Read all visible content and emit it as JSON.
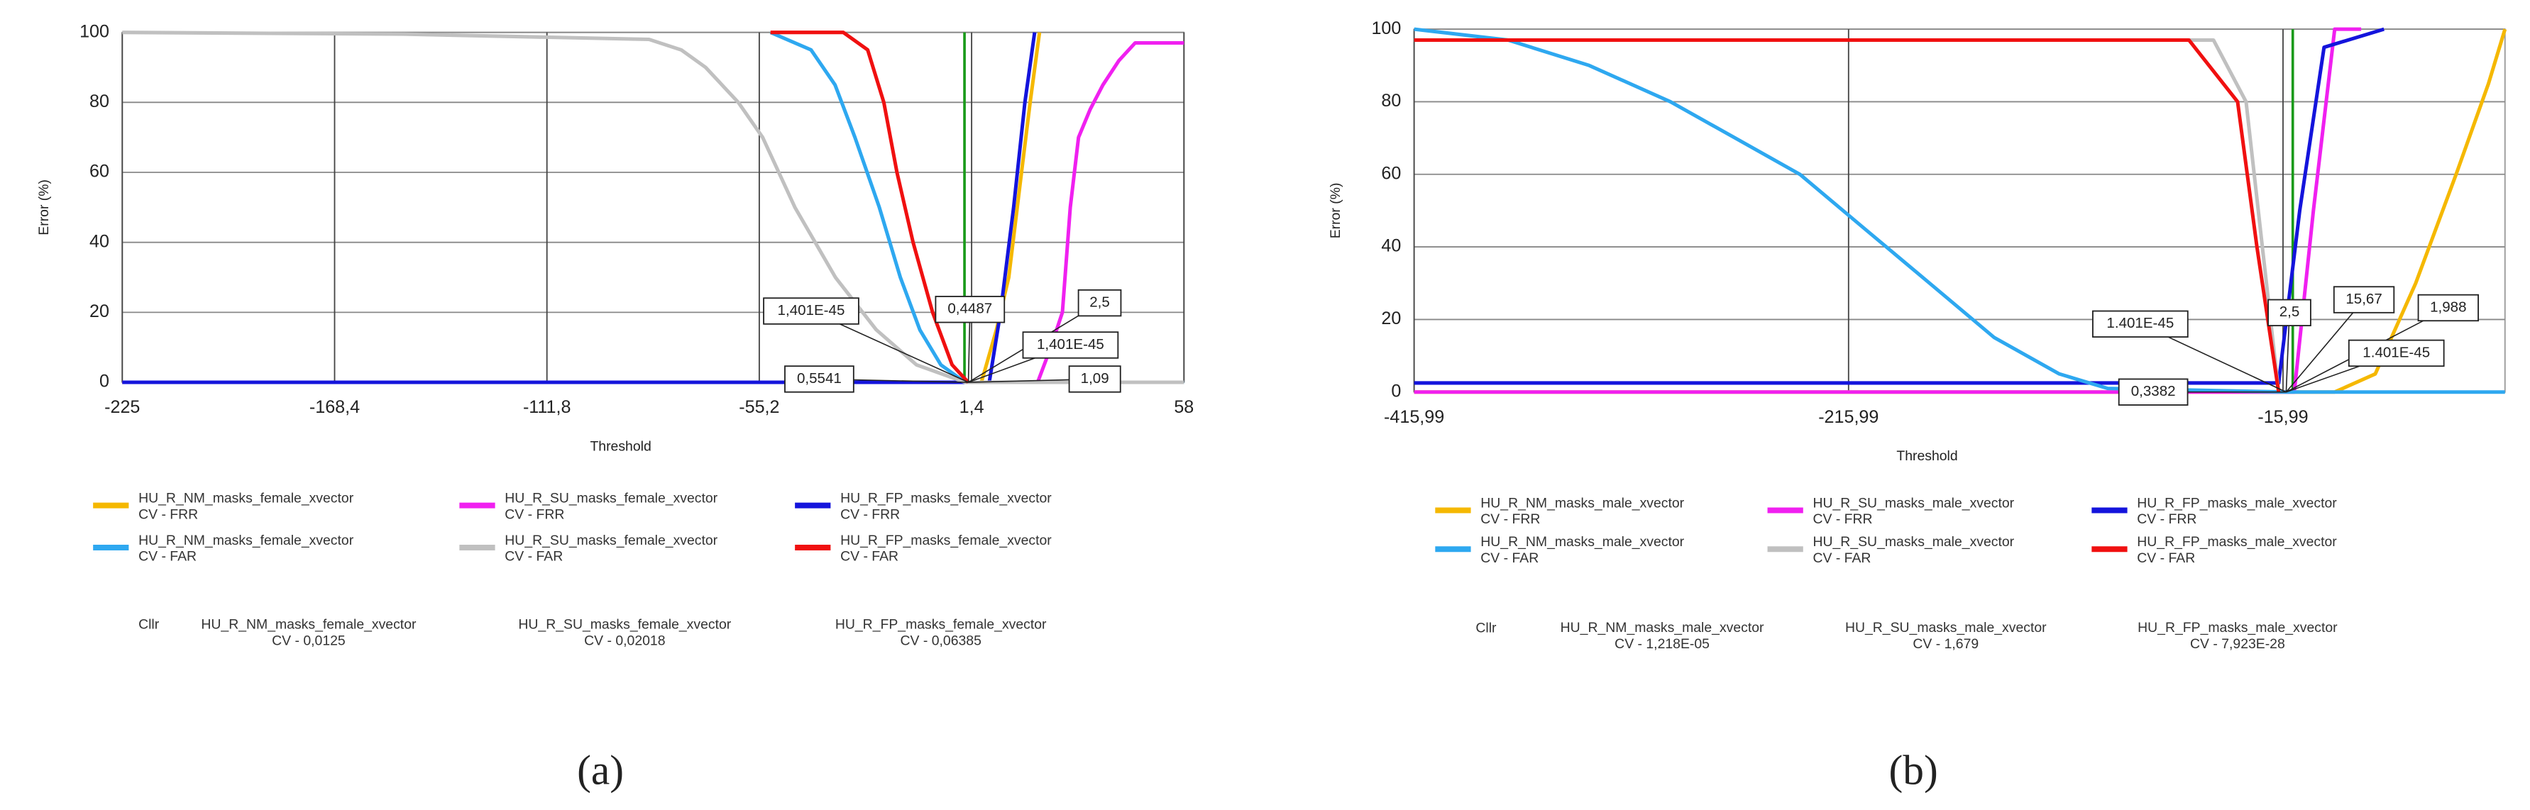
{
  "chart_data": [
    {
      "type": "line",
      "panel_label": "(a)",
      "x_label": "Threshold",
      "y_label": "Error (%)",
      "xlim": [
        -225,
        58
      ],
      "ylim": [
        0,
        100
      ],
      "xticks": [
        -225,
        {
          "value": -168.4,
          "label": "-168,4"
        },
        {
          "value": -111.8,
          "label": "-111,8"
        },
        {
          "value": -55.2,
          "label": "-55,2"
        },
        {
          "value": 1.4,
          "label": "1,4"
        },
        58
      ],
      "yticks": [
        0,
        20,
        40,
        60,
        80,
        100
      ],
      "grid": true,
      "marker_line": {
        "x": -0.5,
        "color": "#1a9a1a"
      },
      "series": [
        {
          "name": "HU_R_NM_masks_female_xvector\nCV - FRR",
          "color": "#f5b800",
          "x": [
            -225,
            4,
            8,
            11.3,
            14.7,
            17,
            19.5
          ],
          "values": [
            0,
            0,
            15,
            30,
            60,
            80,
            100
          ]
        },
        {
          "name": "HU_R_SU_masks_female_xvector\nCV - FRR",
          "color": "#f020f0",
          "x": [
            -225,
            19,
            22.5,
            25.6,
            27.7,
            29.9,
            33,
            36.4,
            40.7,
            45,
            58
          ],
          "values": [
            0,
            0,
            10,
            20,
            50,
            70,
            78,
            85,
            92,
            97,
            97
          ]
        },
        {
          "name": "HU_R_FP_masks_female_xvector\nCV - FRR",
          "color": "#1414dc",
          "x": [
            -225,
            6.1,
            9.1,
            12.6,
            15.6,
            18.2
          ],
          "values": [
            0,
            0,
            20,
            50,
            80,
            100
          ]
        },
        {
          "name": "HU_R_NM_masks_female_xvector\nCV - FAR",
          "color": "#2ea8f0",
          "x": [
            -52.2,
            -41.4,
            -35,
            -29.7,
            -23.2,
            -17.6,
            -12.4,
            -6.8,
            -0.3,
            58
          ],
          "values": [
            100,
            95,
            85,
            70,
            50,
            30,
            15,
            5,
            0,
            0
          ]
        },
        {
          "name": "HU_R_SU_masks_female_xvector\nCV - FAR",
          "color": "#c0c0c0",
          "x": [
            -225,
            -150,
            -84.6,
            -76,
            -69.5,
            -60.8,
            -54.3,
            -45.7,
            -34.9,
            -24,
            -13.3,
            -0.3,
            58
          ],
          "values": [
            100,
            99.5,
            98,
            95,
            90,
            80,
            70,
            50,
            30,
            15,
            5,
            0,
            0
          ]
        },
        {
          "name": "HU_R_FP_masks_female_xvector\nCV - FAR",
          "color": "#f01010",
          "x": [
            -52.2,
            -32.8,
            -26.3,
            -22,
            -18.5,
            -14.2,
            -9,
            -3.8,
            0.5
          ],
          "values": [
            100,
            100,
            95,
            80,
            60,
            40,
            20,
            5,
            0
          ]
        }
      ],
      "annotations": [
        "1,401E-45",
        "0,4487",
        "2,5",
        "1,401E-45",
        "0,5541",
        "1,09"
      ],
      "cllr_label": "Cllr",
      "cllr": [
        "HU_R_NM_masks_female_xvector\nCV - 0,0125",
        "HU_R_SU_masks_female_xvector\nCV - 0,02018",
        "HU_R_FP_masks_female_xvector\nCV - 0,06385"
      ]
    },
    {
      "type": "line",
      "panel_label": "(b)",
      "x_label": "Threshold",
      "y_label": "Error (%)",
      "xlim": [
        -415.99,
        86.2
      ],
      "ylim": [
        0,
        100
      ],
      "xticks": [
        {
          "value": -415.99,
          "label": "-415,99"
        },
        {
          "value": -215.99,
          "label": "-215,99"
        },
        {
          "value": -15.99,
          "label": "-15,99"
        }
      ],
      "yticks": [
        0,
        20,
        40,
        60,
        80,
        100
      ],
      "grid": true,
      "marker_line": {
        "x": -11.5,
        "color": "#1a9a1a"
      },
      "series": [
        {
          "name": "HU_R_NM_masks_male_xvector\nCV - FRR",
          "color": "#f5b800",
          "x": [
            -415.99,
            7.8,
            26.5,
            45.1,
            63.7,
            78.6,
            86.2
          ],
          "values": [
            0,
            0,
            5,
            30,
            60,
            85,
            100
          ]
        },
        {
          "name": "HU_R_SU_masks_male_xvector\nCV - FRR",
          "color": "#f020f0",
          "x": [
            -415.99,
            -10.8,
            -2,
            7.8,
            20
          ],
          "values": [
            0,
            0,
            50,
            100,
            100
          ]
        },
        {
          "name": "HU_R_FP_masks_male_xvector\nCV - FRR",
          "color": "#1414dc",
          "x": [
            -415.99,
            -18,
            -8.3,
            2.9,
            30.5
          ],
          "values": [
            2.5,
            2.5,
            50,
            95,
            100
          ]
        },
        {
          "name": "HU_R_NM_masks_male_xvector\nCV - FAR",
          "color": "#2ea8f0",
          "x": [
            -415.99,
            -372.7,
            -335.4,
            -298,
            -268.2,
            -238.4,
            -208.6,
            -178.7,
            -148.9,
            -119,
            -96.7,
            -14.5,
            86.2
          ],
          "values": [
            100,
            97,
            90,
            80,
            70,
            60,
            45,
            30,
            15,
            5,
            1,
            0,
            0
          ]
        },
        {
          "name": "HU_R_SU_masks_male_xvector\nCV - FAR",
          "color": "#c0c0c0",
          "x": [
            -415.99,
            -48,
            -33,
            -18
          ],
          "values": [
            97,
            97,
            80,
            0
          ]
        },
        {
          "name": "HU_R_FP_masks_male_xvector\nCV - FAR",
          "color": "#f01010",
          "x": [
            -415.99,
            -59.3,
            -36.9,
            -28,
            -18
          ],
          "values": [
            97,
            97,
            80,
            40,
            0
          ]
        }
      ],
      "annotations": [
        "1.401E-45",
        "2,5",
        "15,67",
        "1,988",
        "1.401E-45",
        "0,3382"
      ],
      "cllr_label": "Cllr",
      "cllr": [
        "HU_R_NM_masks_male_xvector\nCV - 1,218E-05",
        "HU_R_SU_masks_male_xvector\nCV - 1,679",
        "HU_R_FP_masks_male_xvector\nCV - 7,923E-28"
      ]
    }
  ]
}
